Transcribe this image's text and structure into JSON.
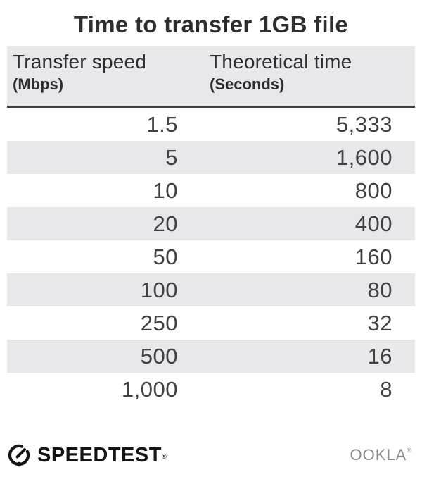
{
  "title": "Time to transfer 1GB file",
  "table": {
    "columns": [
      {
        "label": "Transfer speed",
        "unit": "(Mbps)"
      },
      {
        "label": "Theoretical time",
        "unit": "(Seconds)"
      }
    ],
    "rows": [
      {
        "speed": "1.5",
        "time": "5,333"
      },
      {
        "speed": "5",
        "time": "1,600"
      },
      {
        "speed": "10",
        "time": "800"
      },
      {
        "speed": "20",
        "time": "400"
      },
      {
        "speed": "50",
        "time": "160"
      },
      {
        "speed": "100",
        "time": "80"
      },
      {
        "speed": "250",
        "time": "32"
      },
      {
        "speed": "500",
        "time": "16"
      },
      {
        "speed": "1,000",
        "time": "8"
      }
    ]
  },
  "footer": {
    "speedtest_label": "SPEEDTEST",
    "ookla_label": "OOKLA",
    "registered_mark": "®"
  },
  "colors": {
    "stripe": "#e8e8ea",
    "header_bg": "#e8e8ea",
    "rule": "#414042",
    "title_text": "#2e2d2f",
    "number_text": "#414042",
    "speedtest_black": "#141414",
    "ookla_gray": "#8b8b8b"
  },
  "chart_data": {
    "type": "table",
    "title": "Time to transfer 1GB file",
    "columns": [
      "Transfer speed (Mbps)",
      "Theoretical time (Seconds)"
    ],
    "rows": [
      [
        1.5,
        5333
      ],
      [
        5,
        1600
      ],
      [
        10,
        800
      ],
      [
        20,
        400
      ],
      [
        50,
        160
      ],
      [
        100,
        80
      ],
      [
        250,
        32
      ],
      [
        500,
        16
      ],
      [
        1000,
        8
      ]
    ]
  }
}
